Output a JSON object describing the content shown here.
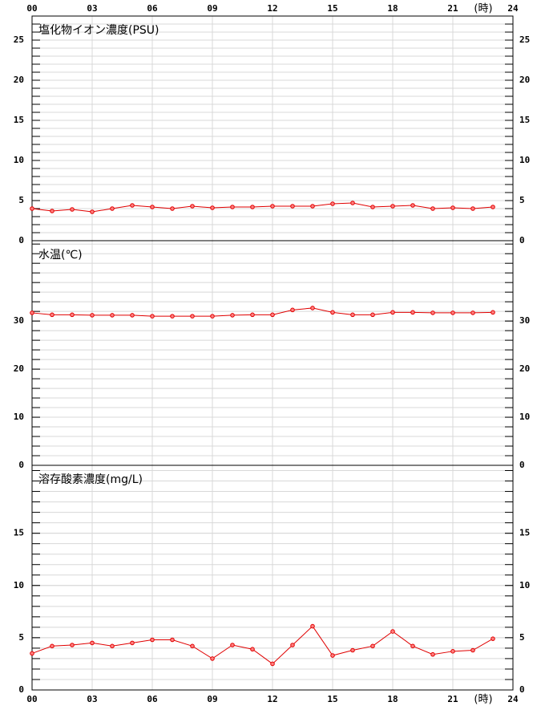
{
  "chart_data": [
    {
      "type": "line",
      "title": "塩化物イオン濃度(PSU)",
      "color": "#e00000",
      "xlim": [
        0,
        24
      ],
      "xticks": [
        {
          "value": 0,
          "label": "00"
        },
        {
          "value": 3,
          "label": "03"
        },
        {
          "value": 6,
          "label": "06"
        },
        {
          "value": 9,
          "label": "09"
        },
        12,
        15,
        18,
        21,
        24
      ],
      "xlabel": "(時)",
      "x": [
        0,
        1,
        2,
        3,
        4,
        5,
        6,
        7,
        8,
        9,
        10,
        11,
        12,
        13,
        14,
        15,
        16,
        17,
        18,
        19,
        20,
        21,
        22,
        23
      ],
      "values": [
        4.0,
        3.7,
        3.9,
        3.6,
        4.0,
        4.4,
        4.2,
        4.0,
        4.3,
        4.1,
        4.2,
        4.2,
        4.3,
        4.3,
        4.3,
        4.6,
        4.7,
        4.2,
        4.3,
        4.4,
        4.0,
        4.1,
        4.0,
        4.2
      ],
      "ylim": [
        0,
        28
      ],
      "yticks": [
        0,
        5,
        10,
        15,
        20,
        25
      ],
      "minor_grid_step": 1
    },
    {
      "type": "line",
      "title": "水温(℃)",
      "color": "#e00000",
      "xlim": [
        0,
        24
      ],
      "x": [
        0,
        1,
        2,
        3,
        4,
        5,
        6,
        7,
        8,
        9,
        10,
        11,
        12,
        13,
        14,
        15,
        16,
        17,
        18,
        19,
        20,
        21,
        22,
        23
      ],
      "values": [
        31.7,
        31.3,
        31.3,
        31.2,
        31.2,
        31.2,
        31.0,
        31.0,
        31.0,
        31.0,
        31.2,
        31.3,
        31.3,
        32.3,
        32.7,
        31.8,
        31.3,
        31.3,
        31.8,
        31.8,
        31.7,
        31.7,
        31.7,
        31.8
      ],
      "ylim": [
        0,
        46.7
      ],
      "yticks": [
        0,
        10,
        20,
        30
      ],
      "minor_grid_step": 2
    },
    {
      "type": "line",
      "title": "溶存酸素濃度(mg/L)",
      "color": "#e00000",
      "xlim": [
        0,
        24
      ],
      "xticks": [
        {
          "value": 0,
          "label": "00"
        },
        {
          "value": 3,
          "label": "03"
        },
        {
          "value": 6,
          "label": "06"
        },
        {
          "value": 9,
          "label": "09"
        },
        12,
        15,
        18,
        21,
        24
      ],
      "xlabel": "(時)",
      "x": [
        0,
        1,
        2,
        3,
        4,
        5,
        6,
        7,
        8,
        9,
        10,
        11,
        12,
        13,
        14,
        15,
        16,
        17,
        18,
        19,
        20,
        21,
        22,
        23
      ],
      "values": [
        3.5,
        4.2,
        4.3,
        4.5,
        4.2,
        4.5,
        4.8,
        4.8,
        4.2,
        3.0,
        4.3,
        3.9,
        2.5,
        4.3,
        6.1,
        3.3,
        3.8,
        4.2,
        5.6,
        4.2,
        3.4,
        3.7,
        3.8,
        4.9
      ],
      "ylim": [
        0,
        21.5
      ],
      "yticks": [
        0,
        5,
        10,
        15
      ],
      "minor_grid_step": 1
    }
  ]
}
